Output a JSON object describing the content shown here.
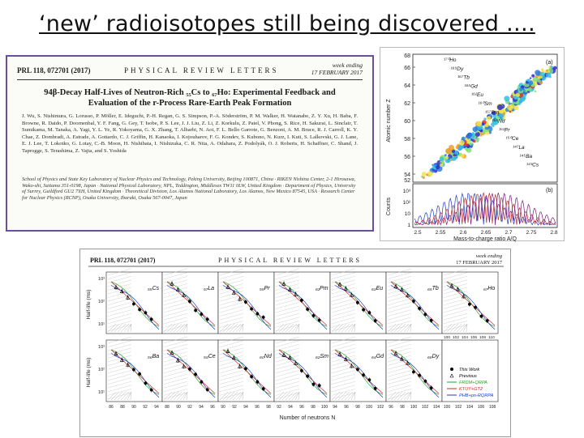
{
  "slide": {
    "title": "‘new’ radioisotopes still being discovered …."
  },
  "paper": {
    "prl_id": "PRL 118, 072701 (2017)",
    "journal": "PHYSICAL REVIEW LETTERS",
    "week_line1": "week ending",
    "week_line2": "17 FEBRUARY 2017",
    "title_line1": "94β-Decay Half-Lives of Neutron-Rich ₅₅Cs to ₆₇Ho: Experimental Feedback and",
    "title_line2": "Evaluation of the r-Process Rare-Earth Peak Formation",
    "authors": "J. Wu, S. Nishimura, G. Lorusso, P. Möller, E. Ideguchi, P.-H. Regan, G. S. Simpson, P.-A. Söderström, P. M. Walker, H. Watanabe, Z. Y. Xu, H. Baba, F. Browne, R. Daido, P. Doornenbal, Y. F. Fang, G. Gey, T. Isobe, P. S. Lee, J. J. Liu, Z. Li, Z. Korkulu, Z. Patel, V. Phong, S. Rice, H. Sakurai, L. Sinclair, T. Sumikama, M. Tanaka, A. Yagi, Y. L. Ye, R. Yokoyama, G. X. Zhang, T. Alharbi, N. Aoi, F. L. Bello Garrote, G. Benzoni, A. M. Bruce, R. J. Carroll, K. Y. Chae, Z. Dombradi, A. Estrade, A. Gottardo, C. J. Griffin, H. Kanaoka, I. Kojouharov, F. G. Kondev, S. Kubono, N. Kurz, I. Kuti, S. Lalkovski, G. J. Lane, E. J. Lee, T. Lokotko, G. Lotay, C.-B. Moon, H. Nishibata, I. Nishizuka, C. R. Nita, A. Odahara, Z. Podolyák, O. J. Roberts, H. Schaffner, C. Shand, J. Taprogge, S. Terashima, Z. Vajta, and S. Yoshida",
    "affiliations": "School of Physics and State Key Laboratory of Nuclear Physics and Technology, Peking University, Beijing 100871, China · RIKEN Nishina Center, 2-1 Hirosawa, Wako-shi, Saitama 351-0198, Japan · National Physical Laboratory, NPL, Teddington, Middlesex TW11 0LW, United Kingdom · Department of Physics, University of Surrey, Guildford GU2 7XH, United Kingdom · Theoretical Division, Los Alamos National Laboratory, Los Alamos, New Mexico 87545, USA · Research Center for Nuclear Physics (RCNP), Osaka University, Ibaraki, Osaka 567-0047, Japan"
  },
  "nuclide_chart": {
    "panel_a": "(a)",
    "panel_b": "(b)",
    "ylabel_a": "Atomic number Z",
    "ylabel_b": "Counts",
    "xlabel": "Mass-to-charge ratio A/Q",
    "z_ticks": [
      "66",
      "64",
      "62",
      "60",
      "58",
      "56",
      "54"
    ],
    "z_top": "68",
    "z_bottom": "52",
    "count_ticks": [
      "10³",
      "10²",
      "10",
      "1"
    ],
    "x_ticks": [
      "2.5",
      "2.55",
      "2.6",
      "2.65",
      "2.7",
      "2.75",
      "2.8"
    ],
    "labels": [
      "¹⁷⁰Ho",
      "¹⁶⁹Dy",
      "¹⁶⁷Tb",
      "¹⁶⁵Gd",
      "¹⁶²Eu",
      "¹⁶⁰Sm",
      "¹⁵⁷Pm",
      "¹⁵⁵Nd",
      "¹⁵²Pr",
      "¹⁵⁰Ce",
      "¹⁴⁷La",
      "¹⁴⁵Ba",
      "¹⁴³Cs"
    ]
  },
  "halflife_fig": {
    "prl_id": "PRL 118, 072701 (2017)",
    "journal": "PHYSICAL REVIEW LETTERS",
    "week_line1": "week ending",
    "week_line2": "17 FEBRUARY 2017",
    "ylabel": "Half-life (ms)",
    "xlabel": "Number of neutrons N",
    "row1": [
      "₅₅Cs",
      "₅₇La",
      "₅₉Pr",
      "₆₁Pm",
      "₆₃Eu",
      "₆₅Tb",
      "₆₇Ho"
    ],
    "row2": [
      "₅₆Ba",
      "₅₈Ce",
      "₆₀Nd",
      "₆₂Sm",
      "₆₄Gd",
      "₆₆Dy"
    ],
    "ytick_hi": "10³",
    "ytick_mid": "10²",
    "ytick_lo": "10¹",
    "legend": [
      "This Work",
      "Previous",
      "FRDM+QRPA",
      "KTUY+GT2",
      "PHB+pn-RQRPA"
    ],
    "legend_colors": [
      "#000000",
      "#000000",
      "#2ca02c",
      "#d62728",
      "#1f3fbf"
    ],
    "xtick_sets": [
      [
        "86",
        "88",
        "90",
        "92",
        "94"
      ],
      [
        "88",
        "90",
        "92",
        "94",
        "96"
      ],
      [
        "90",
        "92",
        "94",
        "96",
        "98"
      ],
      [
        "92",
        "94",
        "96",
        "98",
        "100"
      ],
      [
        "94",
        "96",
        "98",
        "100",
        "102"
      ],
      [
        "96",
        "98",
        "100",
        "102",
        "104"
      ],
      [
        "100",
        "102",
        "104",
        "106",
        "108"
      ]
    ],
    "xtick_last": [
      "100",
      "102",
      "104",
      "106",
      "108",
      "110"
    ]
  }
}
